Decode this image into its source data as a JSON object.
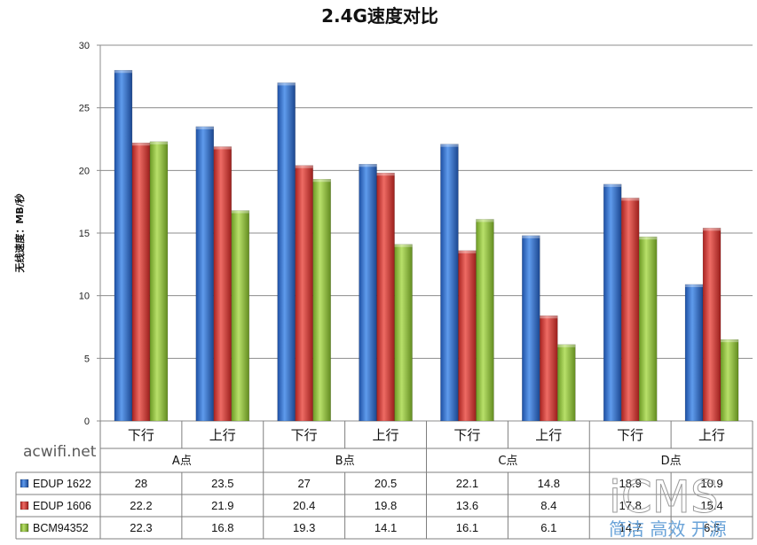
{
  "chart_data": {
    "type": "bar",
    "title": "2.4G速度对比",
    "ylabel": "无线速度：MB/秒",
    "xlabel": "",
    "ylim": [
      0,
      30
    ],
    "yticks": [
      0,
      5,
      10,
      15,
      20,
      25,
      30
    ],
    "grid": true,
    "legend": "data-table",
    "groups": [
      "A点",
      "B点",
      "C点",
      "D点"
    ],
    "categories": [
      "下行",
      "上行",
      "下行",
      "上行",
      "下行",
      "上行",
      "下行",
      "上行"
    ],
    "series": [
      {
        "name": "EDUP 1622",
        "color": "#2f6fce",
        "values": [
          28,
          23.5,
          27,
          20.5,
          22.1,
          14.8,
          18.9,
          10.9
        ]
      },
      {
        "name": "EDUP 1606",
        "color": "#d23a36",
        "values": [
          22.2,
          21.9,
          20.4,
          19.8,
          13.6,
          8.4,
          17.8,
          15.4
        ]
      },
      {
        "name": "BCM94352",
        "color": "#8fc23c",
        "values": [
          22.3,
          16.8,
          19.3,
          14.1,
          16.1,
          6.1,
          14.7,
          6.5
        ]
      }
    ]
  },
  "watermarks": {
    "site": "acwifi.net",
    "brand": "iCMS",
    "slogan": "简洁 高效 开源"
  }
}
